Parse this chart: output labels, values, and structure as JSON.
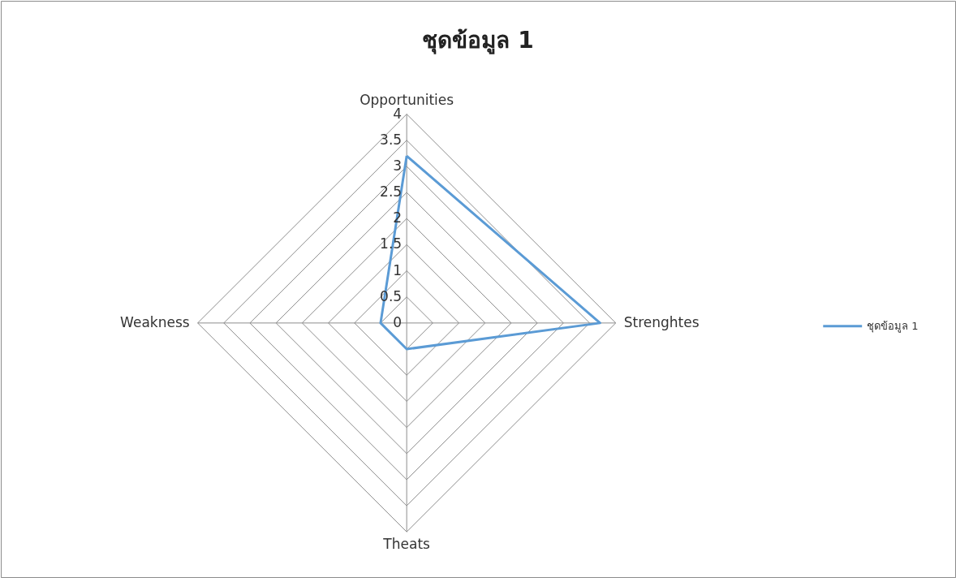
{
  "chart_data": {
    "type": "radar",
    "title": "ชุดข้อมูล 1",
    "categories": [
      "Opportunities",
      "Strenghtes",
      "Theats",
      "Weakness"
    ],
    "series": [
      {
        "name": "ชุดข้อมูล 1",
        "color": "#5b9bd5",
        "values": [
          3.2,
          3.7,
          0.5,
          0.5
        ]
      }
    ],
    "ylim": [
      0,
      4
    ],
    "yticks": [
      0,
      0.5,
      1,
      1.5,
      2,
      2.5,
      3,
      3.5,
      4
    ],
    "legend": "right",
    "marker": "none"
  }
}
